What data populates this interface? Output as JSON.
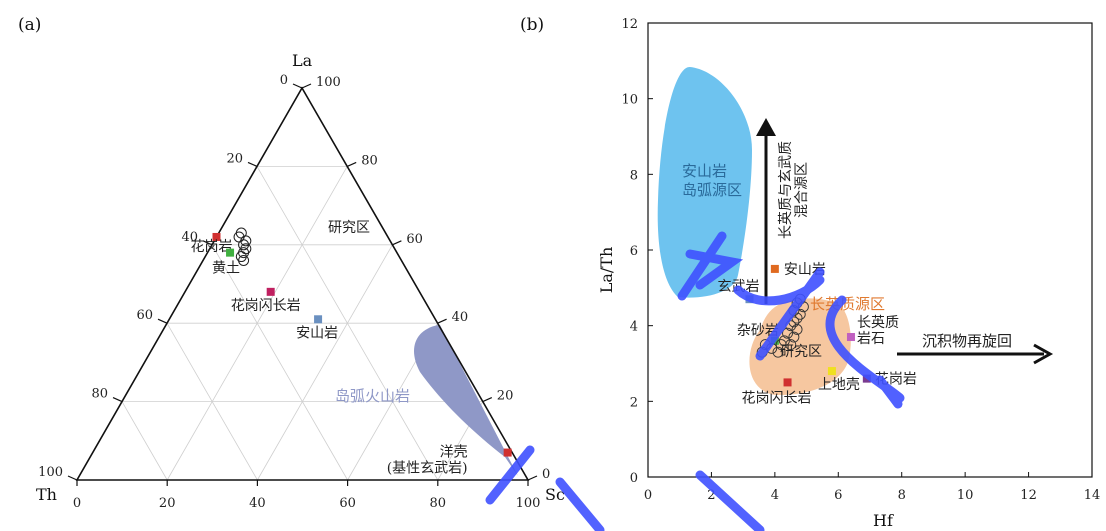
{
  "colors": {
    "island_arc_field": "#8f98c7",
    "andesite_field": "#6ec3ef",
    "felsic_field": "#f6c7a0",
    "felsic_label": "#e07a30",
    "andesite_label": "#2a6a9a",
    "arc_label": "#8f98c7",
    "watermark": "#3f51ff"
  },
  "chart_data": [
    {
      "type": "scatter",
      "subtype": "ternary",
      "panel_label": "(a)",
      "apices": {
        "top": "La",
        "left": "Th",
        "right": "Sc"
      },
      "ticks": [
        "0",
        "20",
        "40",
        "60",
        "80",
        "100"
      ],
      "grid": true,
      "field": {
        "name": "岛弧火山岩",
        "color": "#8f98c7"
      },
      "references": [
        {
          "name": "花岗岩",
          "La": 62,
          "Th": 38,
          "Sc": 0,
          "color": "#d03030"
        },
        {
          "name": "黄土",
          "La": 58,
          "Th": 37,
          "Sc": 5,
          "color": "#40b040"
        },
        {
          "name": "花岗闪长岩",
          "La": 48,
          "Th": 33,
          "Sc": 19,
          "color": "#c02060"
        },
        {
          "name": "安山岩",
          "La": 41,
          "Th": 26,
          "Sc": 33,
          "color": "#6a90c0"
        },
        {
          "name": "洋壳\n(基性玄武岩)",
          "La": 7,
          "Th": 1,
          "Sc": 92,
          "color": "#d03030"
        }
      ],
      "study_area": {
        "name": "研究区",
        "points": [
          {
            "La": 63,
            "Th": 32,
            "Sc": 5
          },
          {
            "La": 62,
            "Th": 33,
            "Sc": 5
          },
          {
            "La": 61,
            "Th": 32,
            "Sc": 7
          },
          {
            "La": 60,
            "Th": 33,
            "Sc": 7
          },
          {
            "La": 59,
            "Th": 33,
            "Sc": 8
          },
          {
            "La": 58,
            "Th": 34,
            "Sc": 8
          },
          {
            "La": 57,
            "Th": 35,
            "Sc": 8
          },
          {
            "La": 56,
            "Th": 35,
            "Sc": 9
          }
        ]
      }
    },
    {
      "type": "scatter",
      "panel_label": "(b)",
      "xlabel": "Hf",
      "ylabel": "La/Th",
      "xlim": [
        0,
        14
      ],
      "ylim": [
        0,
        12
      ],
      "xticks": [
        0,
        2,
        4,
        6,
        8,
        10,
        12,
        14
      ],
      "yticks": [
        0,
        2,
        4,
        6,
        8,
        10,
        12
      ],
      "grid": false,
      "fields": [
        {
          "name": "安山岩\n岛弧源区",
          "color": "#6ec3ef"
        },
        {
          "name": "长英质源区",
          "color": "#f6c7a0"
        }
      ],
      "arrows": [
        {
          "label": "长英质与玄武质\n混合源区",
          "direction": "up"
        },
        {
          "label": "沉积物再旋回",
          "direction": "right"
        }
      ],
      "references": [
        {
          "name": "安山岩",
          "x": 4.0,
          "y": 5.5,
          "color": "#e06a20"
        },
        {
          "name": "玄武岩",
          "x": 3.2,
          "y": 4.7,
          "color": "#6a90c0"
        },
        {
          "name": "杂砂岩",
          "x": 4.0,
          "y": 3.6,
          "color": "#40b040"
        },
        {
          "name": "长英质\n岩石",
          "x": 6.4,
          "y": 3.7,
          "color": "#c060c0"
        },
        {
          "name": "上地壳",
          "x": 5.8,
          "y": 2.8,
          "color": "#f0e020"
        },
        {
          "name": "花岗岩",
          "x": 6.9,
          "y": 2.6,
          "color": "#7a3a90"
        },
        {
          "name": "花岗闪长岩",
          "x": 4.4,
          "y": 2.5,
          "color": "#d03030"
        }
      ],
      "study_area": {
        "name": "研究区",
        "points": [
          {
            "x": 4.8,
            "y": 4.7
          },
          {
            "x": 4.7,
            "y": 4.6
          },
          {
            "x": 4.9,
            "y": 4.5
          },
          {
            "x": 4.6,
            "y": 4.4
          },
          {
            "x": 4.8,
            "y": 4.3
          },
          {
            "x": 4.7,
            "y": 4.2
          },
          {
            "x": 4.6,
            "y": 4.1
          },
          {
            "x": 4.5,
            "y": 4.0
          },
          {
            "x": 4.7,
            "y": 3.9
          },
          {
            "x": 4.4,
            "y": 3.8
          },
          {
            "x": 4.6,
            "y": 3.7
          },
          {
            "x": 4.3,
            "y": 3.6
          },
          {
            "x": 4.5,
            "y": 3.5
          },
          {
            "x": 4.2,
            "y": 3.5
          },
          {
            "x": 3.9,
            "y": 3.4
          },
          {
            "x": 3.6,
            "y": 3.3
          },
          {
            "x": 4.1,
            "y": 3.3
          },
          {
            "x": 3.7,
            "y": 3.5
          }
        ]
      }
    }
  ]
}
